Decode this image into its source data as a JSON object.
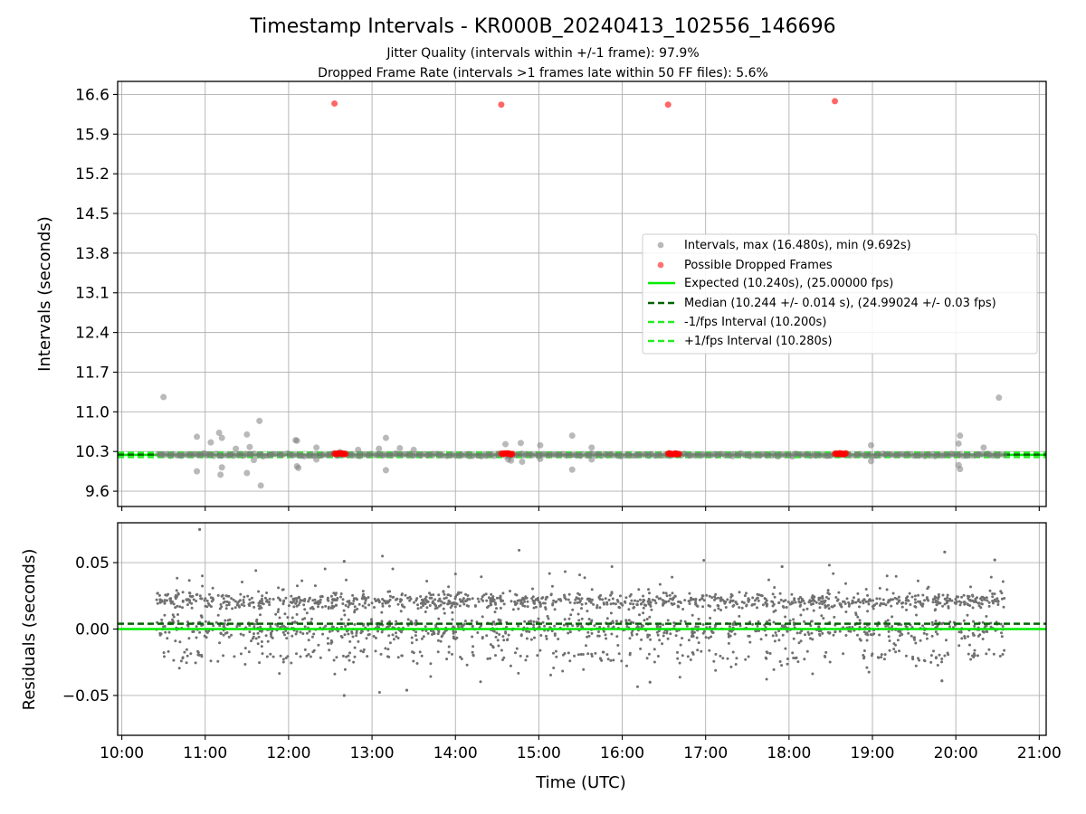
{
  "colors": {
    "intervals": "#808080",
    "dropped": "#ff0000",
    "expected": "#00ee00",
    "median": "#006400",
    "bound": "#22ee22",
    "residual": "#707070"
  },
  "chart_data": [
    {
      "type": "scatter",
      "title": "Timestamp Intervals - KR000B_20240413_102556_146696",
      "subtitle_lines": [
        "Jitter Quality (intervals within +/-1 frame): 97.9%",
        "Dropped Frame Rate (intervals >1 frames late within 50 FF files): 5.6%"
      ],
      "xlabel": "",
      "ylabel": "Intervals (seconds)",
      "xlim": [
        "09:57",
        "21:05"
      ],
      "ylim": [
        9.33,
        16.83
      ],
      "yticks": [
        "9.6",
        "10.3",
        "11.0",
        "11.7",
        "12.4",
        "13.1",
        "13.8",
        "14.5",
        "15.2",
        "15.9",
        "16.6"
      ],
      "grid": true,
      "legend_position": "center-right",
      "legend": [
        "Intervals, max (16.480s), min (9.692s)",
        "Possible Dropped Frames",
        "Expected (10.240s), (25.00000 fps)",
        "Median (10.244 +/- 0.014 s), (24.99024 +/- 0.03 fps)",
        "-1/fps Interval (10.200s)",
        "+1/fps Interval (10.280s)"
      ],
      "expected": 10.24,
      "median": 10.244,
      "lower_bound": 10.2,
      "upper_bound": 10.28,
      "interval_outliers": [
        {
          "x": "10:30",
          "y": 11.26
        },
        {
          "x": "10:54",
          "y": 10.56
        },
        {
          "x": "10:54",
          "y": 9.95
        },
        {
          "x": "11:00",
          "y": 10.26
        },
        {
          "x": "11:04",
          "y": 10.46
        },
        {
          "x": "11:10",
          "y": 10.63
        },
        {
          "x": "11:11",
          "y": 9.89
        },
        {
          "x": "11:12",
          "y": 10.54
        },
        {
          "x": "11:12",
          "y": 10.02
        },
        {
          "x": "11:22",
          "y": 10.35
        },
        {
          "x": "11:30",
          "y": 10.6
        },
        {
          "x": "11:30",
          "y": 9.92
        },
        {
          "x": "11:32",
          "y": 10.38
        },
        {
          "x": "11:35",
          "y": 10.15
        },
        {
          "x": "11:39",
          "y": 10.84
        },
        {
          "x": "11:40",
          "y": 9.7
        },
        {
          "x": "12:05",
          "y": 10.5
        },
        {
          "x": "12:06",
          "y": 10.49
        },
        {
          "x": "12:06",
          "y": 10.04
        },
        {
          "x": "12:07",
          "y": 10.01
        },
        {
          "x": "12:20",
          "y": 10.16
        },
        {
          "x": "12:20",
          "y": 10.37
        },
        {
          "x": "12:37",
          "y": 10.29
        },
        {
          "x": "12:50",
          "y": 10.33
        },
        {
          "x": "13:05",
          "y": 10.35
        },
        {
          "x": "13:10",
          "y": 10.54
        },
        {
          "x": "13:10",
          "y": 9.97
        },
        {
          "x": "13:20",
          "y": 10.36
        },
        {
          "x": "13:30",
          "y": 10.33
        },
        {
          "x": "14:36",
          "y": 10.43
        },
        {
          "x": "14:38",
          "y": 10.16
        },
        {
          "x": "14:40",
          "y": 10.14
        },
        {
          "x": "14:47",
          "y": 10.45
        },
        {
          "x": "14:48",
          "y": 10.12
        },
        {
          "x": "15:01",
          "y": 10.41
        },
        {
          "x": "15:01",
          "y": 10.17
        },
        {
          "x": "15:24",
          "y": 10.58
        },
        {
          "x": "15:24",
          "y": 9.98
        },
        {
          "x": "15:38",
          "y": 10.37
        },
        {
          "x": "15:38",
          "y": 10.16
        },
        {
          "x": "18:59",
          "y": 10.41
        },
        {
          "x": "18:59",
          "y": 10.13
        },
        {
          "x": "20:03",
          "y": 10.58
        },
        {
          "x": "20:02",
          "y": 10.44
        },
        {
          "x": "20:02",
          "y": 10.06
        },
        {
          "x": "20:03",
          "y": 9.99
        },
        {
          "x": "20:20",
          "y": 10.37
        },
        {
          "x": "20:31",
          "y": 11.25
        }
      ],
      "dropped_frames": [
        {
          "x": "12:33",
          "y": 16.44
        },
        {
          "x": "14:33",
          "y": 16.42
        },
        {
          "x": "16:33",
          "y": 16.42
        },
        {
          "x": "18:33",
          "y": 16.48
        }
      ],
      "dropped_clusters": [
        {
          "start": "12:33",
          "end": "12:41",
          "y": 10.26
        },
        {
          "start": "14:33",
          "end": "14:41",
          "y": 10.26
        },
        {
          "start": "16:33",
          "end": "16:41",
          "y": 10.26
        },
        {
          "start": "18:33",
          "end": "18:41",
          "y": 10.26
        }
      ]
    },
    {
      "type": "scatter",
      "title": "",
      "xlabel": "Time (UTC)",
      "ylabel": "Residuals (seconds)",
      "xlim": [
        "09:57",
        "21:05"
      ],
      "ylim": [
        -0.08,
        0.08
      ],
      "xticks": [
        "10:00",
        "11:00",
        "12:00",
        "13:00",
        "14:00",
        "15:00",
        "16:00",
        "17:00",
        "18:00",
        "19:00",
        "20:00",
        "21:00"
      ],
      "yticks": [
        "−0.05",
        "0.00",
        "0.05"
      ],
      "grid": true,
      "x_range": [
        "10:25",
        "20:35"
      ],
      "expected": 0.0,
      "median": 0.004,
      "bands": [
        {
          "y": 0.021,
          "spread": 0.003,
          "share": 0.42
        },
        {
          "y": 0.0,
          "spread": 0.004,
          "share": 0.32
        },
        {
          "y": -0.02,
          "spread": 0.003,
          "share": 0.1
        },
        {
          "y": 0.005,
          "spread": 0.022,
          "share": 0.16
        }
      ],
      "outliers": [
        {
          "x": "10:56",
          "y": 0.075
        },
        {
          "x": "12:40",
          "y": 0.051
        },
        {
          "x": "12:40",
          "y": -0.05
        },
        {
          "x": "13:25",
          "y": -0.046
        },
        {
          "x": "16:20",
          "y": -0.04
        },
        {
          "x": "17:55",
          "y": 0.047
        },
        {
          "x": "19:52",
          "y": 0.058
        },
        {
          "x": "19:50",
          "y": -0.039
        },
        {
          "x": "20:28",
          "y": 0.052
        }
      ]
    }
  ]
}
